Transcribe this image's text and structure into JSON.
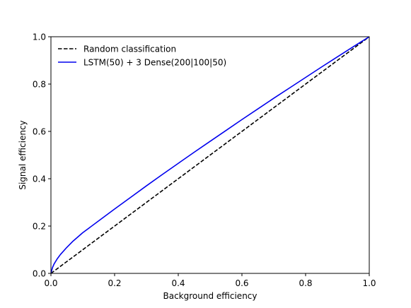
{
  "chart_data": {
    "type": "line",
    "title": "",
    "xlabel": "Background efficiency",
    "ylabel": "Signal efficiency",
    "xlim": [
      0.0,
      1.0
    ],
    "ylim": [
      0.0,
      1.0
    ],
    "xticks": [
      "0.0",
      "0.2",
      "0.4",
      "0.6",
      "0.8",
      "1.0"
    ],
    "yticks": [
      "0.0",
      "0.2",
      "0.4",
      "0.6",
      "0.8",
      "1.0"
    ],
    "grid": false,
    "legend_position": "upper-left",
    "series": [
      {
        "name": "Random classification",
        "color": "#000000",
        "style": "dashed",
        "x": [
          0.0,
          1.0
        ],
        "y": [
          0.0,
          1.0
        ]
      },
      {
        "name": "LSTM(50) + 3 Dense(200|100|50)",
        "color": "#0000ee",
        "style": "solid",
        "x": [
          0.0,
          0.005,
          0.01,
          0.02,
          0.03,
          0.05,
          0.07,
          0.1,
          0.15,
          0.2,
          0.25,
          0.3,
          0.35,
          0.4,
          0.45,
          0.5,
          0.55,
          0.6,
          0.65,
          0.7,
          0.75,
          0.8,
          0.85,
          0.9,
          0.95,
          1.0
        ],
        "y": [
          0.0,
          0.025,
          0.04,
          0.062,
          0.08,
          0.11,
          0.137,
          0.172,
          0.222,
          0.272,
          0.321,
          0.37,
          0.418,
          0.465,
          0.512,
          0.558,
          0.604,
          0.65,
          0.695,
          0.74,
          0.784,
          0.828,
          0.872,
          0.915,
          0.958,
          1.0
        ]
      }
    ]
  }
}
